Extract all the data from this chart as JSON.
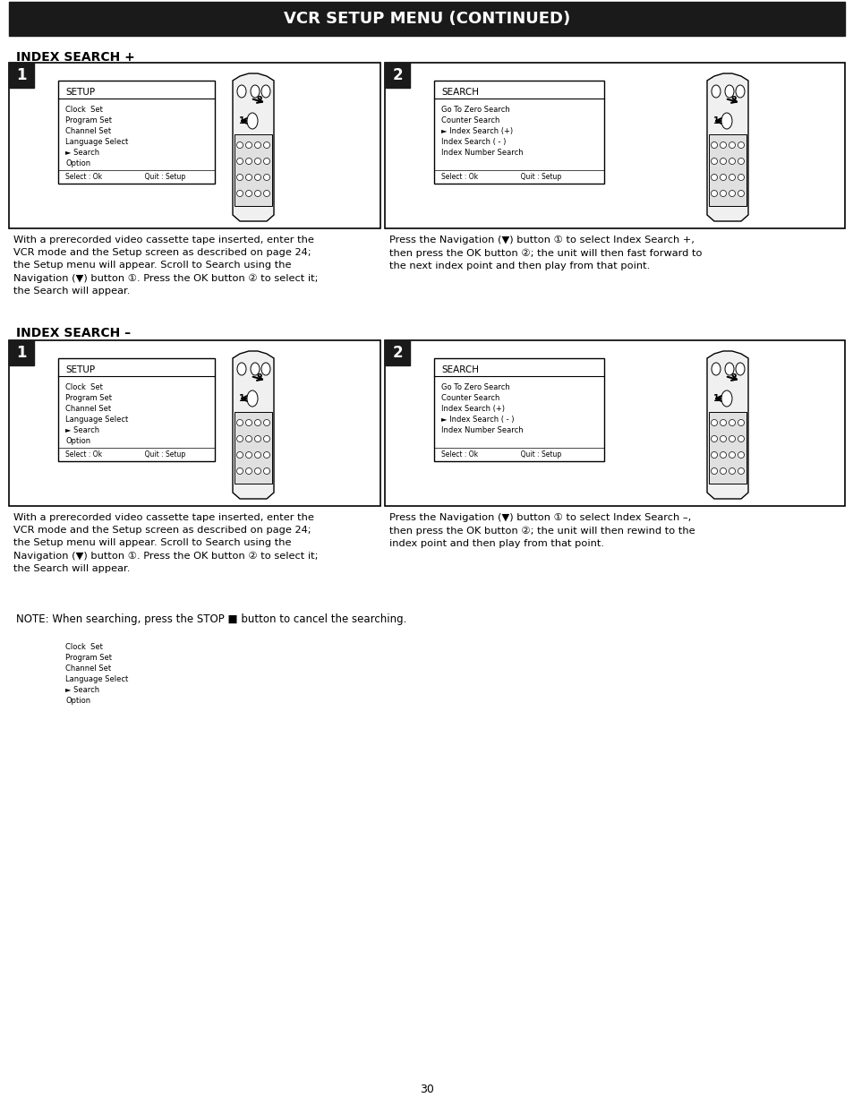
{
  "title": "VCR SETUP MENU (CONTINUED)",
  "title_bg": "#1a1a1a",
  "title_color": "#ffffff",
  "section1_title": "INDEX SEARCH +",
  "section2_title": "INDEX SEARCH –",
  "setup_menu_items": [
    "Clock  Set",
    "Program Set",
    "Channel Set",
    "Language Select",
    "► Search",
    "Option"
  ],
  "setup_footer": "Select : Ok                    Quit : Setup",
  "search_menu_items_plus": [
    "Go To Zero Search",
    "Counter Search",
    "► Index Search (+)",
    "Index Search ( - )",
    "Index Number Search"
  ],
  "search_menu_items_minus": [
    "Go To Zero Search",
    "Counter Search",
    "Index Search (+)",
    "Index Search ( - )",
    "► Index Number Search"
  ],
  "search_footer": "Select : Ok                    Quit : Setup",
  "search_menu_items_minus2": [
    "Go To Zero Search",
    "Counter Search",
    "Index Search (+)",
    "► Index Search ( - )",
    "Index Number Search"
  ],
  "text_left_1": "With a prerecorded video cassette tape inserted, enter the\nVCR mode and the Setup screen as described on page 24;\nthe Setup menu will appear. Scroll to Search using the\nNavigation (▼) button ①. Press the OK button ② to select it;\nthe Search will appear.",
  "text_right_1": "Press the Navigation (▼) button ① to select Index Search +,\nthen press the OK button ②; the unit will then fast forward to\nthe next index point and then play from that point.",
  "text_left_2": "With a prerecorded video cassette tape inserted, enter the\nVCR mode and the Setup screen as described on page 24;\nthe Setup menu will appear. Scroll to Search using the\nNavigation (▼) button ①. Press the OK button ② to select it;\nthe Search will appear.",
  "text_right_2": "Press the Navigation (▼) button ① to select Index Search –,\nthen press the OK button ②; the unit will then rewind to the\nindex point and then play from that point.",
  "note_text": "NOTE: When searching, press the STOP ■ button to cancel the searching.",
  "page_number": "30",
  "bg_color": "#ffffff",
  "text_color": "#000000",
  "border_color": "#000000"
}
